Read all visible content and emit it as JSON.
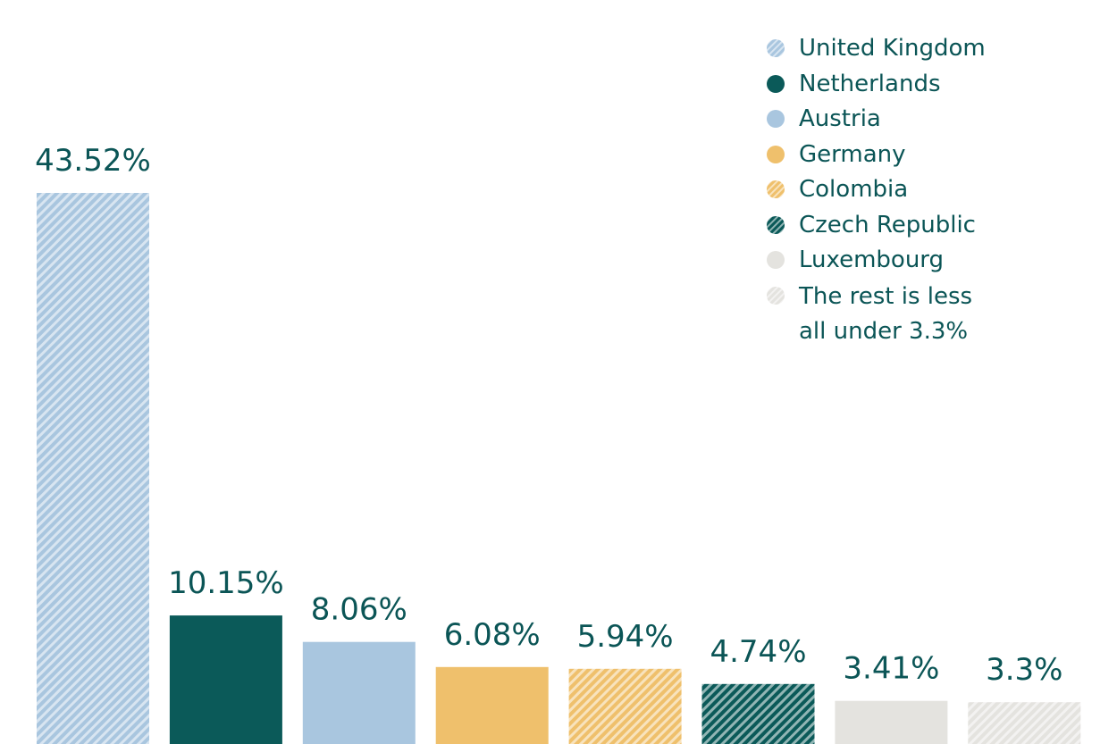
{
  "chart_data": {
    "type": "bar",
    "categories": [
      "United Kingdom",
      "Netherlands",
      "Austria",
      "Germany",
      "Colombia",
      "Czech Republic",
      "Luxembourg",
      "The rest is less all under 3.3%"
    ],
    "values": [
      43.52,
      10.15,
      8.06,
      6.08,
      5.94,
      4.74,
      3.41,
      3.3
    ],
    "value_labels": [
      "43.52%",
      "10.15%",
      "8.06%",
      "6.08%",
      "5.94%",
      "4.74%",
      "3.41%",
      "3.3%"
    ],
    "title": "",
    "xlabel": "",
    "ylabel": "",
    "ylim": [
      0,
      43.52
    ],
    "grid": false,
    "legend_position": "top-right",
    "colors": [
      "#a9c6df",
      "#0b5a59",
      "#a9c6df",
      "#efc06c",
      "#efc06c",
      "#0b5a59",
      "#e4e3df",
      "#e4e3df"
    ],
    "hatched": [
      true,
      false,
      false,
      false,
      true,
      true,
      false,
      true
    ],
    "label_color": "#0b5556"
  },
  "legend": {
    "items": [
      {
        "label": "United Kingdom"
      },
      {
        "label": "Netherlands"
      },
      {
        "label": "Austria"
      },
      {
        "label": "Germany"
      },
      {
        "label": "Colombia"
      },
      {
        "label": "Czech Republic"
      },
      {
        "label": "Luxembourg"
      },
      {
        "label": "The rest is less",
        "label2": "all under 3.3%"
      }
    ]
  }
}
